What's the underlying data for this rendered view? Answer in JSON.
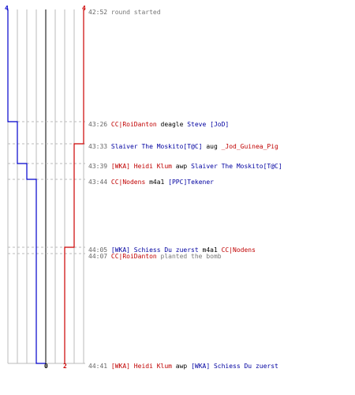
{
  "colors": {
    "blue": "#0000cc",
    "red": "#cc0000",
    "grid": "#bbbbbb",
    "center": "#555555"
  },
  "score": {
    "start_blue": "4",
    "start_red": "4",
    "end_blue": "0",
    "end_red": "2"
  },
  "events": [
    {
      "time": "42:52",
      "parts": [
        {
          "t": "round started",
          "c": "gray"
        }
      ]
    },
    {
      "time": "43:26",
      "parts": [
        {
          "t": "CC|RoiDanton",
          "c": "red"
        },
        {
          "t": " deagle ",
          "c": "black"
        },
        {
          "t": "Steve [JoD]",
          "c": "blue"
        }
      ]
    },
    {
      "time": "43:33",
      "parts": [
        {
          "t": "Slaiver The Moskito[T@C]",
          "c": "blue"
        },
        {
          "t": " aug ",
          "c": "black"
        },
        {
          "t": "_Jod_Guinea_Pig",
          "c": "red"
        }
      ]
    },
    {
      "time": "43:39",
      "parts": [
        {
          "t": "[WKA] Heidi Klum",
          "c": "red"
        },
        {
          "t": " awp ",
          "c": "black"
        },
        {
          "t": "Slaiver The Moskito[T@C]",
          "c": "blue"
        }
      ]
    },
    {
      "time": "43:44",
      "parts": [
        {
          "t": "CC|Nodens",
          "c": "red"
        },
        {
          "t": " m4a1 ",
          "c": "black"
        },
        {
          "t": "[PPC]Tekener",
          "c": "blue"
        }
      ]
    },
    {
      "time": "44:05",
      "parts": [
        {
          "t": "[WKA] Schiess Du zuerst",
          "c": "blue"
        },
        {
          "t": " m4a1 ",
          "c": "black"
        },
        {
          "t": "CC|Nodens",
          "c": "red"
        }
      ]
    },
    {
      "time": "44:07",
      "parts": [
        {
          "t": "CC|RoiDanton",
          "c": "red"
        },
        {
          "t": " planted the bomb",
          "c": "gray"
        }
      ]
    },
    {
      "time": "44:41",
      "parts": [
        {
          "t": "[WKA] Heidi Klum",
          "c": "red"
        },
        {
          "t": " awp ",
          "c": "black"
        },
        {
          "t": "[WKA] Schiess Du zuerst",
          "c": "blue"
        }
      ]
    }
  ],
  "blue_steps": [
    4,
    3,
    3,
    2,
    1,
    1,
    1,
    0
  ],
  "red_steps": [
    4,
    4,
    3,
    3,
    3,
    2,
    2,
    2
  ]
}
